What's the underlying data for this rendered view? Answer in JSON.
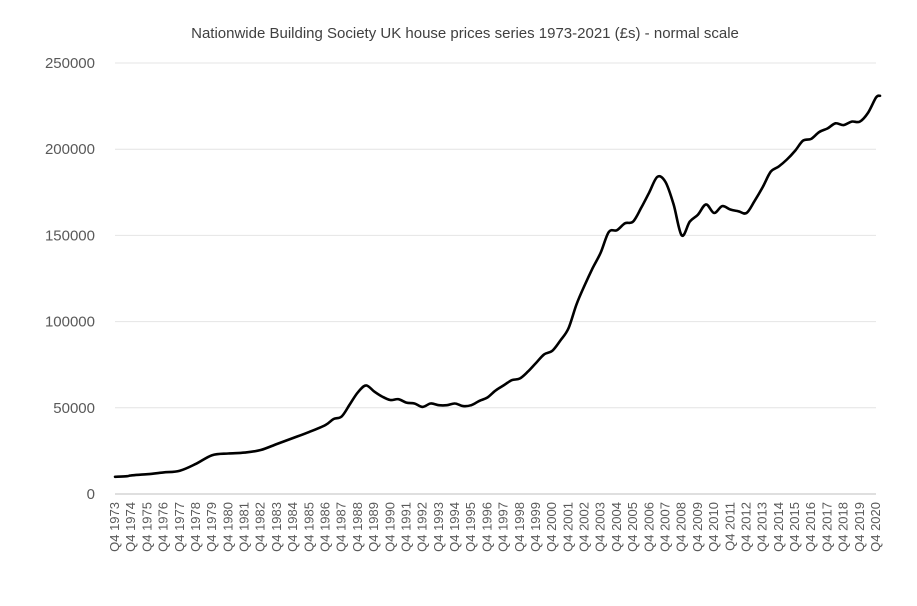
{
  "chart_data": {
    "type": "line",
    "title": "Nationwide Building Society UK house prices series 1973-2021 (£s) - normal scale",
    "xlabel": "",
    "ylabel": "",
    "ylim": [
      0,
      250000
    ],
    "yticks": [
      "0",
      "50000",
      "100000",
      "150000",
      "200000",
      "250000"
    ],
    "grid": true,
    "legend": "none",
    "categories": [
      "Q4 1973",
      "Q4 1974",
      "Q4 1975",
      "Q4 1976",
      "Q4 1977",
      "Q4 1978",
      "Q4 1979",
      "Q4 1980",
      "Q4 1981",
      "Q4 1982",
      "Q4 1983",
      "Q4 1984",
      "Q4 1985",
      "Q4 1986",
      "Q4 1987",
      "Q4 1988",
      "Q4 1989",
      "Q4 1990",
      "Q4 1991",
      "Q4 1992",
      "Q4 1993",
      "Q4 1994",
      "Q4 1995",
      "Q4 1996",
      "Q4 1997",
      "Q4 1998",
      "Q4 1999",
      "Q4 2000",
      "Q4 2001",
      "Q4 2002",
      "Q4 2003",
      "Q4 2004",
      "Q4 2005",
      "Q4 2006",
      "Q4 2007",
      "Q4 2008",
      "Q4 2009",
      "Q4 2010",
      "Q4 2011",
      "Q4 2012",
      "Q4 2013",
      "Q4 2014",
      "Q4 2015",
      "Q4 2016",
      "Q4 2017",
      "Q4 2018",
      "Q4 2019",
      "Q4 2020"
    ],
    "series": [
      {
        "name": "",
        "color": "#000000",
        "points": [
          [
            "Q4 1973",
            10000
          ],
          [
            "Q3 1974",
            10300
          ],
          [
            "Q4 1974",
            10800
          ],
          [
            "Q4 1975",
            11500
          ],
          [
            "Q4 1976",
            12500
          ],
          [
            "Q4 1977",
            13500
          ],
          [
            "Q4 1978",
            17500
          ],
          [
            "Q4 1979",
            22500
          ],
          [
            "Q4 1980",
            23500
          ],
          [
            "Q4 1981",
            24000
          ],
          [
            "Q4 1982",
            25500
          ],
          [
            "Q4 1983",
            29000
          ],
          [
            "Q4 1984",
            32500
          ],
          [
            "Q4 1985",
            36000
          ],
          [
            "Q4 1986",
            40000
          ],
          [
            "Q2 1987",
            43500
          ],
          [
            "Q4 1987",
            45000
          ],
          [
            "Q2 1988",
            52000
          ],
          [
            "Q4 1988",
            59000
          ],
          [
            "Q2 1989",
            63000
          ],
          [
            "Q4 1989",
            59500
          ],
          [
            "Q2 1990",
            56500
          ],
          [
            "Q4 1990",
            54500
          ],
          [
            "Q2 1991",
            55000
          ],
          [
            "Q4 1991",
            53000
          ],
          [
            "Q2 1992",
            52500
          ],
          [
            "Q4 1992",
            50500
          ],
          [
            "Q2 1993",
            52500
          ],
          [
            "Q4 1993",
            51500
          ],
          [
            "Q2 1994",
            51500
          ],
          [
            "Q4 1994",
            52500
          ],
          [
            "Q2 1995",
            51000
          ],
          [
            "Q4 1995",
            51500
          ],
          [
            "Q2 1996",
            54000
          ],
          [
            "Q4 1996",
            56000
          ],
          [
            "Q2 1997",
            60000
          ],
          [
            "Q4 1997",
            63000
          ],
          [
            "Q2 1998",
            66000
          ],
          [
            "Q4 1998",
            67000
          ],
          [
            "Q2 1999",
            71000
          ],
          [
            "Q4 1999",
            76000
          ],
          [
            "Q2 2000",
            81000
          ],
          [
            "Q4 2000",
            83000
          ],
          [
            "Q2 2001",
            89000
          ],
          [
            "Q4 2001",
            96000
          ],
          [
            "Q2 2002",
            110000
          ],
          [
            "Q4 2002",
            121000
          ],
          [
            "Q2 2003",
            131000
          ],
          [
            "Q4 2003",
            140000
          ],
          [
            "Q2 2004",
            152000
          ],
          [
            "Q4 2004",
            153000
          ],
          [
            "Q2 2005",
            157000
          ],
          [
            "Q4 2005",
            158000
          ],
          [
            "Q2 2006",
            166000
          ],
          [
            "Q4 2006",
            175000
          ],
          [
            "Q2 2007",
            184000
          ],
          [
            "Q4 2007",
            181000
          ],
          [
            "Q2 2008",
            168000
          ],
          [
            "Q4 2008",
            150000
          ],
          [
            "Q2 2009",
            158000
          ],
          [
            "Q4 2009",
            162000
          ],
          [
            "Q2 2010",
            168000
          ],
          [
            "Q4 2010",
            163000
          ],
          [
            "Q2 2011",
            167000
          ],
          [
            "Q4 2011",
            165000
          ],
          [
            "Q2 2012",
            164000
          ],
          [
            "Q4 2012",
            163000
          ],
          [
            "Q2 2013",
            170000
          ],
          [
            "Q4 2013",
            178000
          ],
          [
            "Q2 2014",
            187000
          ],
          [
            "Q4 2014",
            190000
          ],
          [
            "Q2 2015",
            194000
          ],
          [
            "Q4 2015",
            199000
          ],
          [
            "Q2 2016",
            205000
          ],
          [
            "Q4 2016",
            206000
          ],
          [
            "Q2 2017",
            210000
          ],
          [
            "Q4 2017",
            212000
          ],
          [
            "Q2 2018",
            215000
          ],
          [
            "Q4 2018",
            214000
          ],
          [
            "Q2 2019",
            216000
          ],
          [
            "Q4 2019",
            216000
          ],
          [
            "Q2 2020",
            221000
          ],
          [
            "Q4 2020",
            230000
          ],
          [
            "Q1 2021",
            231000
          ]
        ]
      }
    ]
  }
}
